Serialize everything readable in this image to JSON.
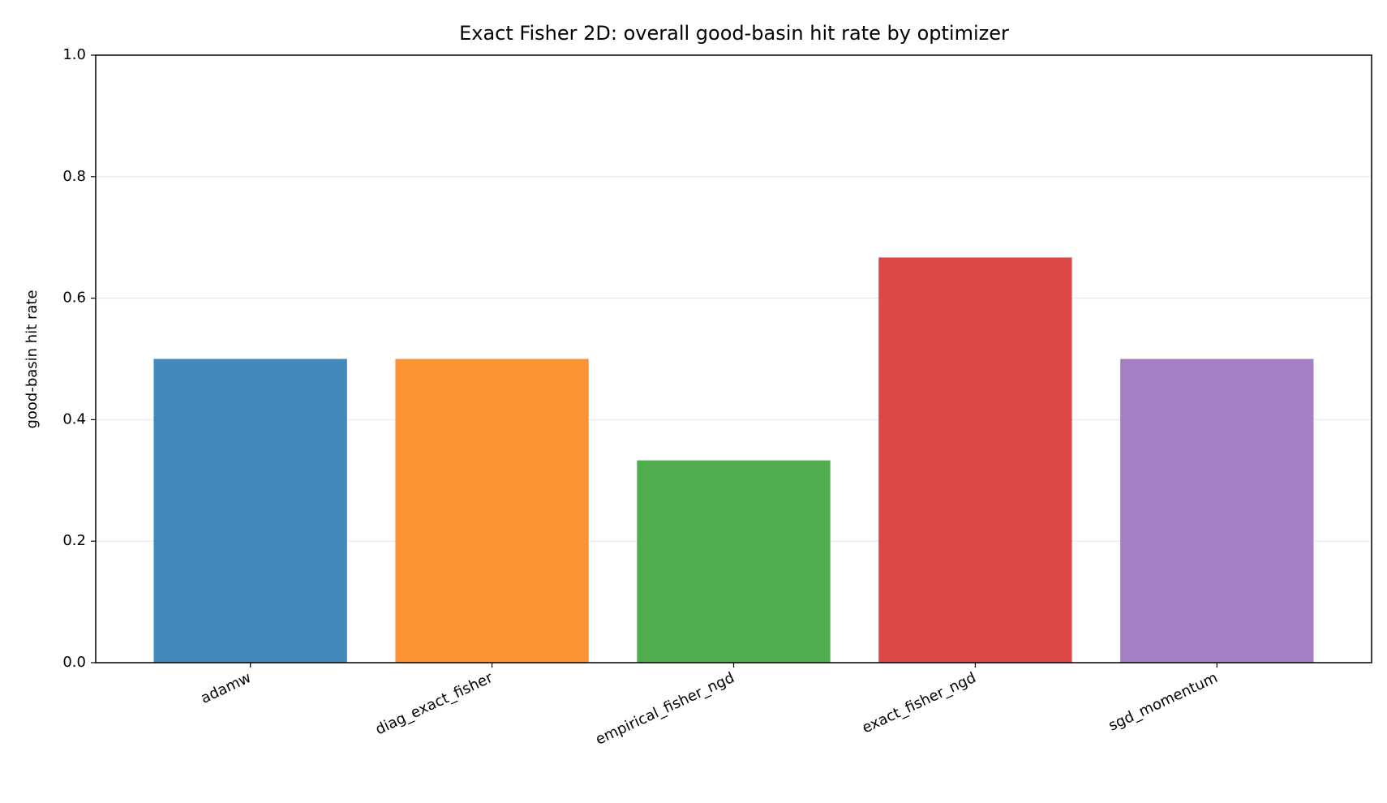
{
  "chart_data": {
    "type": "bar",
    "title": "Exact Fisher 2D: overall good-basin hit rate by optimizer",
    "y_label": "good-basin hit rate",
    "categories": [
      "adamw",
      "diag_exact_fisher",
      "empirical_fisher_ngd",
      "exact_fisher_ngd",
      "sgd_momentum"
    ],
    "values": [
      0.5,
      0.5,
      0.333,
      0.667,
      0.5
    ],
    "colors": [
      "#428abd",
      "#fe9335",
      "#4fad4e",
      "#dc4848",
      "#a57fc5"
    ],
    "ylim": [
      0,
      1
    ],
    "yticks": [
      {
        "value": 0,
        "label": "0.0"
      },
      0.2,
      0.4,
      0.6,
      0.8,
      {
        "value": 1,
        "label": "1.0"
      }
    ],
    "grid": true
  }
}
